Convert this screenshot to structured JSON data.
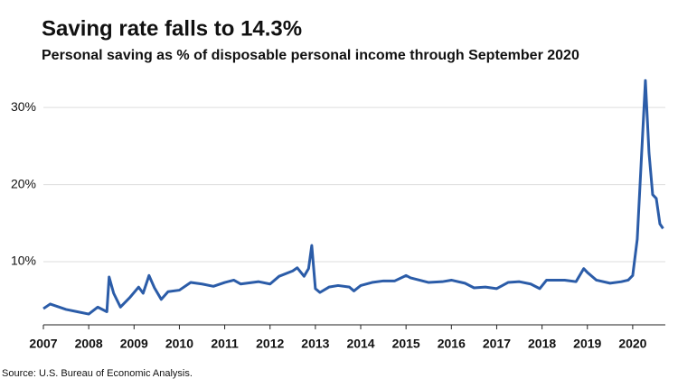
{
  "chart_data": {
    "type": "line",
    "title": "Saving rate falls to 14.3%",
    "subtitle": "Personal saving as % of disposable personal income through September 2020",
    "source": "Source: U.S. Bureau of Economic Analysis.",
    "x": [
      2007.0,
      2007.15,
      2007.5,
      2007.75,
      2008.0,
      2008.2,
      2008.4,
      2008.45,
      2008.55,
      2008.7,
      2008.9,
      2009.1,
      2009.2,
      2009.33,
      2009.45,
      2009.6,
      2009.75,
      2010.0,
      2010.25,
      2010.5,
      2010.75,
      2011.0,
      2011.2,
      2011.35,
      2011.75,
      2012.0,
      2012.2,
      2012.5,
      2012.6,
      2012.75,
      2012.85,
      2012.92,
      2013.0,
      2013.1,
      2013.3,
      2013.5,
      2013.75,
      2013.85,
      2014.0,
      2014.25,
      2014.5,
      2014.75,
      2015.0,
      2015.1,
      2015.5,
      2015.8,
      2016.0,
      2016.3,
      2016.5,
      2016.75,
      2017.0,
      2017.25,
      2017.5,
      2017.75,
      2017.95,
      2018.1,
      2018.5,
      2018.75,
      2018.92,
      2019.0,
      2019.2,
      2019.5,
      2019.75,
      2019.9,
      2020.0,
      2020.1,
      2020.28,
      2020.36,
      2020.44,
      2020.52,
      2020.6,
      2020.67
    ],
    "series": [
      {
        "color": "#2b5ca8",
        "values": [
          3.9,
          4.5,
          3.8,
          3.5,
          3.2,
          4.1,
          3.5,
          8.0,
          5.9,
          4.1,
          5.3,
          6.7,
          5.9,
          8.2,
          6.6,
          5.1,
          6.1,
          6.3,
          7.3,
          7.1,
          6.8,
          7.3,
          7.6,
          7.1,
          7.4,
          7.1,
          8.1,
          8.8,
          9.2,
          8.1,
          9.1,
          12.1,
          6.5,
          6.0,
          6.7,
          6.9,
          6.7,
          6.2,
          6.9,
          7.3,
          7.5,
          7.5,
          8.2,
          7.9,
          7.3,
          7.4,
          7.6,
          7.2,
          6.6,
          6.7,
          6.5,
          7.3,
          7.4,
          7.1,
          6.5,
          7.6,
          7.6,
          7.4,
          9.1,
          8.6,
          7.6,
          7.2,
          7.4,
          7.6,
          8.2,
          12.9,
          33.5,
          24.1,
          18.7,
          18.2,
          14.9,
          14.3
        ]
      }
    ],
    "xlim": [
      2007,
      2020.72
    ],
    "ylim": [
      1.8,
      34
    ],
    "xticks": [
      2007,
      2008,
      2009,
      2010,
      2011,
      2012,
      2013,
      2014,
      2015,
      2016,
      2017,
      2018,
      2019,
      2020
    ],
    "yticks": [
      {
        "value": 10,
        "label": "10%"
      },
      {
        "value": 20,
        "label": "20%"
      },
      {
        "value": 30,
        "label": "30%"
      }
    ],
    "grid": true
  }
}
